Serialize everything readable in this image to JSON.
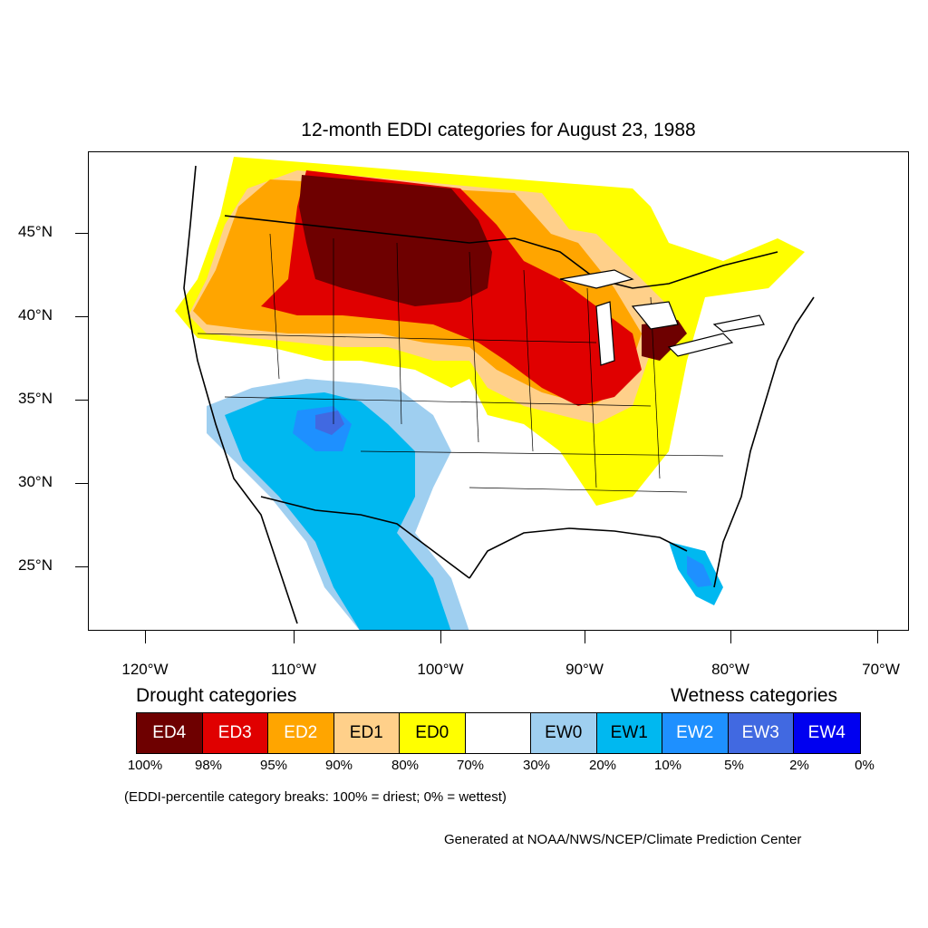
{
  "title": "12-month EDDI categories for August 23, 1988",
  "latitude_ticks": [
    "45°N",
    "40°N",
    "35°N",
    "30°N",
    "25°N"
  ],
  "longitude_ticks": [
    "120°W",
    "110°W",
    "100°W",
    "90°W",
    "80°W",
    "70°W"
  ],
  "drought_heading": "Drought categories",
  "wetness_heading": "Wetness categories",
  "legend": [
    {
      "label": "ED4",
      "color": "#6e0000",
      "text_color": "#ffffff"
    },
    {
      "label": "ED3",
      "color": "#e00000",
      "text_color": "#ffffff"
    },
    {
      "label": "ED2",
      "color": "#ffa500",
      "text_color": "#ffffff"
    },
    {
      "label": "ED1",
      "color": "#ffd08a",
      "text_color": "#000000"
    },
    {
      "label": "ED0",
      "color": "#ffff00",
      "text_color": "#000000"
    },
    {
      "label": "",
      "color": "#ffffff",
      "text_color": "#000000"
    },
    {
      "label": "EW0",
      "color": "#9fcff0",
      "text_color": "#000000"
    },
    {
      "label": "EW1",
      "color": "#00b8f0",
      "text_color": "#000000"
    },
    {
      "label": "EW2",
      "color": "#1e90ff",
      "text_color": "#ffffff"
    },
    {
      "label": "EW3",
      "color": "#4169e1",
      "text_color": "#ffffff"
    },
    {
      "label": "EW4",
      "color": "#0000f0",
      "text_color": "#ffffff"
    }
  ],
  "percent_breaks": [
    "100%",
    "98%",
    "95%",
    "90%",
    "80%",
    "70%",
    "30%",
    "20%",
    "10%",
    "5%",
    "2%",
    "0%"
  ],
  "note": "(EDDI-percentile category breaks: 100% = driest; 0% = wettest)",
  "credit": "Generated at NOAA/NWS/NCEP/Climate Prediction Center"
}
